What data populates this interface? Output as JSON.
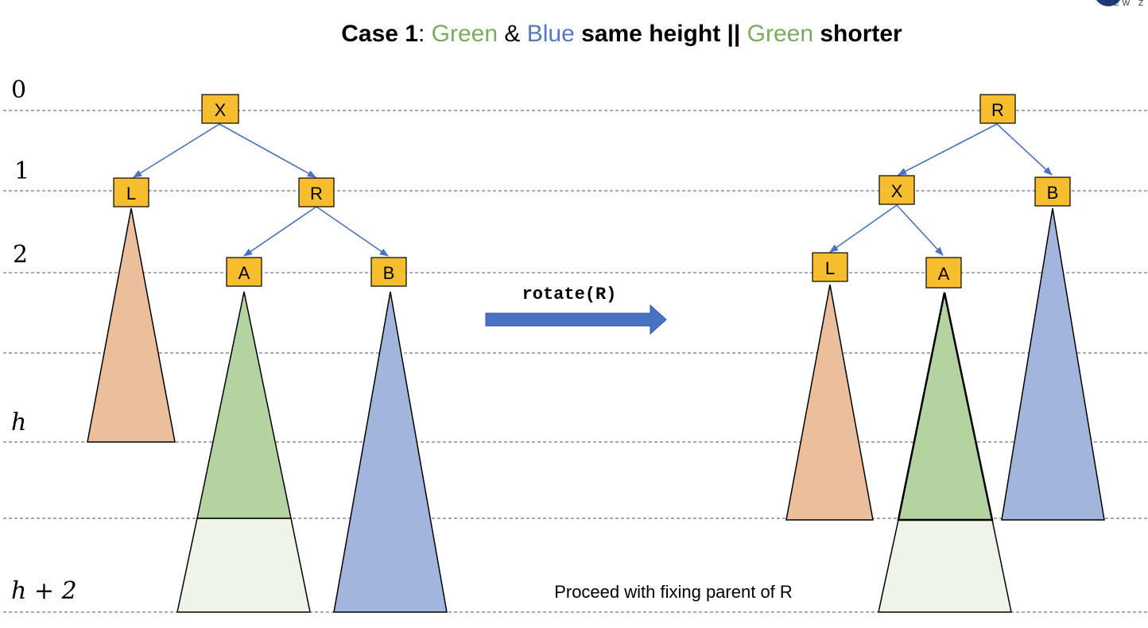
{
  "title": {
    "prefix": "Case 1",
    "sep": ": ",
    "green1": "Green",
    "amp": " & ",
    "blue": "Blue",
    "mid": " same height || ",
    "green2": "Green",
    "suffix": " shorter"
  },
  "levels": [
    "0",
    "1",
    "2",
    "h",
    "h + 2"
  ],
  "before_tree": {
    "nodes": [
      "X",
      "L",
      "R",
      "A",
      "B"
    ]
  },
  "after_tree": {
    "nodes": [
      "R",
      "X",
      "B",
      "L",
      "A"
    ]
  },
  "arrow_label": "rotate(R)",
  "footnote": "Proceed with fixing parent of R",
  "logo_text": "NEW Z",
  "colors": {
    "node_fill": "#f6bd2e",
    "edge": "#4a72c4",
    "orange_tree": "#ebbf9b",
    "green_tree": "#b5d3a0",
    "green_light": "#eef5e8",
    "blue_tree": "#a2b6dd",
    "arrow": "#4a72c4"
  }
}
